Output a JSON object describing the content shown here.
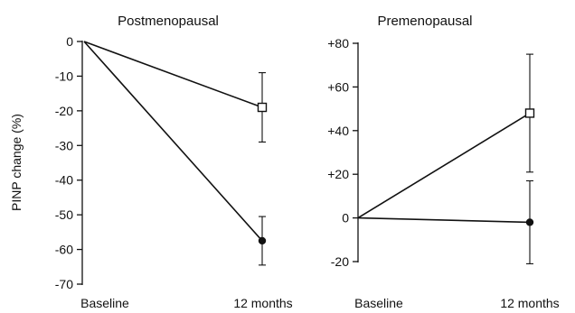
{
  "ylabel": "PINP change (%)",
  "chart_data": [
    {
      "type": "line",
      "title": "Postmenopausal",
      "categories": [
        "Baseline",
        "12 months"
      ],
      "ylim": [
        -70,
        0
      ],
      "yticks": [
        0,
        -10,
        -20,
        -30,
        -40,
        -50,
        -60,
        -70
      ],
      "ytick_labels": [
        "0",
        "-10",
        "-20",
        "-30",
        "-40",
        "-50",
        "-60",
        "-70"
      ],
      "series": [
        {
          "marker": "open-square",
          "values": [
            0,
            -19
          ],
          "errors": [
            null,
            10
          ]
        },
        {
          "marker": "filled-circle",
          "values": [
            0,
            -57.5
          ],
          "errors": [
            null,
            7
          ]
        }
      ]
    },
    {
      "type": "line",
      "title": "Premenopausal",
      "categories": [
        "Baseline",
        "12 months"
      ],
      "ylim": [
        -25,
        80
      ],
      "yticks": [
        80,
        60,
        40,
        20,
        0,
        -20
      ],
      "ytick_labels": [
        "+80",
        "+60",
        "+40",
        "+20",
        "0",
        "-20"
      ],
      "series": [
        {
          "marker": "open-square",
          "values": [
            0,
            48
          ],
          "errors": [
            null,
            27
          ]
        },
        {
          "marker": "filled-circle",
          "values": [
            0,
            -2
          ],
          "errors": [
            null,
            19
          ]
        }
      ]
    }
  ]
}
